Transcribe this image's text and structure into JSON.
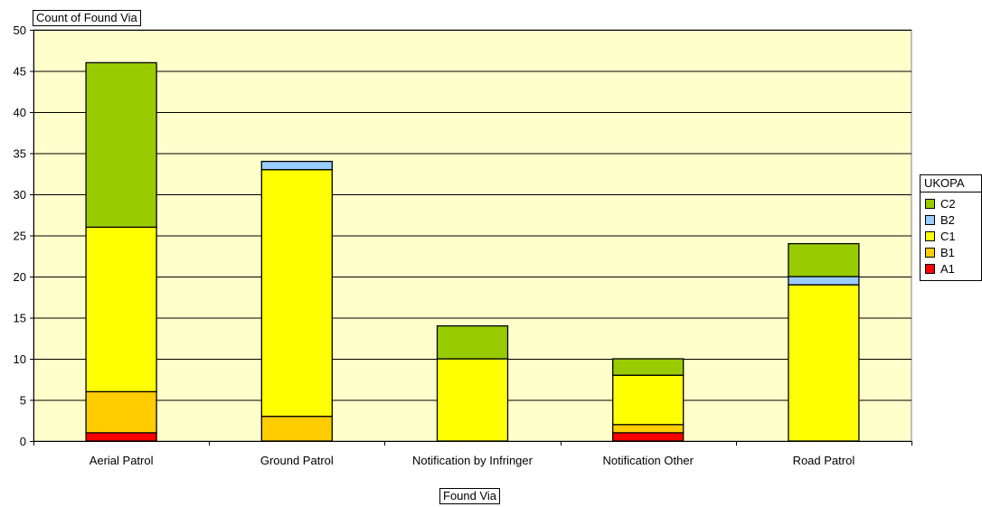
{
  "chart_data": {
    "type": "bar",
    "stacked": true,
    "title": "",
    "ylabel": "Count of  Found Via",
    "xlabel": "Found Via",
    "ylim": [
      0,
      50
    ],
    "yticks": [
      0,
      5,
      10,
      15,
      20,
      25,
      30,
      35,
      40,
      45,
      50
    ],
    "grid": true,
    "legend_title": "UKOPA",
    "legend_position": "right",
    "categories": [
      "Aerial Patrol",
      "Ground Patrol",
      "Notification by Infringer",
      "Notification Other",
      "Road Patrol"
    ],
    "series": [
      {
        "name": "A1",
        "color": "#ff0000",
        "values": [
          1,
          0,
          0,
          1,
          0
        ]
      },
      {
        "name": "B1",
        "color": "#ffcc00",
        "values": [
          5,
          3,
          0,
          1,
          0
        ]
      },
      {
        "name": "C1",
        "color": "#ffff00",
        "values": [
          20,
          30,
          10,
          6,
          19
        ]
      },
      {
        "name": "B2",
        "color": "#99ccff",
        "values": [
          0,
          1,
          0,
          0,
          1
        ]
      },
      {
        "name": "C2",
        "color": "#99cc00",
        "values": [
          20,
          0,
          4,
          2,
          4
        ]
      }
    ],
    "plot_background": "#ffffcc"
  }
}
